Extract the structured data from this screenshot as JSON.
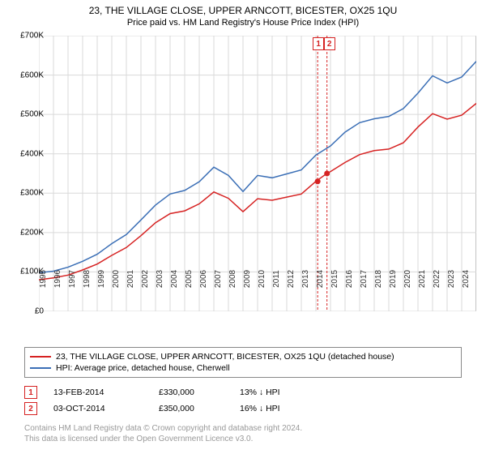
{
  "title": "23, THE VILLAGE CLOSE, UPPER ARNCOTT, BICESTER, OX25 1QU",
  "subtitle": "Price paid vs. HM Land Registry's House Price Index (HPI)",
  "chart": {
    "type": "line",
    "background_color": "#ffffff",
    "grid_color": "#d9d9d9",
    "border_color": "#888888",
    "xlim": [
      1995,
      2025
    ],
    "ylim": [
      0,
      700000
    ],
    "ytick_step": 100000,
    "ytick_format_prefix": "£",
    "ytick_labels": [
      "£0",
      "£100K",
      "£200K",
      "£300K",
      "£400K",
      "£500K",
      "£600K",
      "£700K"
    ],
    "xticks": [
      1995,
      1996,
      1997,
      1998,
      1999,
      2000,
      2001,
      2002,
      2003,
      2004,
      2005,
      2006,
      2007,
      2008,
      2009,
      2010,
      2011,
      2012,
      2013,
      2014,
      2015,
      2016,
      2017,
      2018,
      2019,
      2020,
      2021,
      2022,
      2023,
      2024
    ],
    "series": [
      {
        "name": "23, THE VILLAGE CLOSE, UPPER ARNCOTT, BICESTER, OX25 1QU (detached house)",
        "color": "#d62222",
        "line_width": 1.5,
        "data": [
          [
            1995,
            80000
          ],
          [
            1996,
            85000
          ],
          [
            1997,
            92000
          ],
          [
            1998,
            105000
          ],
          [
            1999,
            120000
          ],
          [
            2000,
            142000
          ],
          [
            2001,
            162000
          ],
          [
            2002,
            192000
          ],
          [
            2003,
            225000
          ],
          [
            2004,
            248000
          ],
          [
            2005,
            255000
          ],
          [
            2006,
            273000
          ],
          [
            2007,
            303000
          ],
          [
            2008,
            287000
          ],
          [
            2009,
            253000
          ],
          [
            2010,
            286000
          ],
          [
            2011,
            282000
          ],
          [
            2012,
            290000
          ],
          [
            2013,
            298000
          ],
          [
            2014,
            330000
          ],
          [
            2014.75,
            350000
          ],
          [
            2015,
            355000
          ],
          [
            2016,
            378000
          ],
          [
            2017,
            398000
          ],
          [
            2018,
            408000
          ],
          [
            2019,
            412000
          ],
          [
            2020,
            428000
          ],
          [
            2021,
            468000
          ],
          [
            2022,
            502000
          ],
          [
            2023,
            488000
          ],
          [
            2024,
            498000
          ],
          [
            2025,
            528000
          ]
        ]
      },
      {
        "name": "HPI: Average price, detached house, Cherwell",
        "color": "#3b6fb6",
        "line_width": 1.5,
        "data": [
          [
            1995,
            98000
          ],
          [
            1996,
            102000
          ],
          [
            1997,
            112000
          ],
          [
            1998,
            127000
          ],
          [
            1999,
            145000
          ],
          [
            2000,
            172000
          ],
          [
            2001,
            195000
          ],
          [
            2002,
            232000
          ],
          [
            2003,
            270000
          ],
          [
            2004,
            298000
          ],
          [
            2005,
            307000
          ],
          [
            2006,
            329000
          ],
          [
            2007,
            366000
          ],
          [
            2008,
            345000
          ],
          [
            2009,
            304000
          ],
          [
            2010,
            345000
          ],
          [
            2011,
            339000
          ],
          [
            2012,
            349000
          ],
          [
            2013,
            359000
          ],
          [
            2014,
            397000
          ],
          [
            2015,
            420000
          ],
          [
            2016,
            455000
          ],
          [
            2017,
            479000
          ],
          [
            2018,
            489000
          ],
          [
            2019,
            495000
          ],
          [
            2020,
            515000
          ],
          [
            2021,
            554000
          ],
          [
            2022,
            598000
          ],
          [
            2023,
            580000
          ],
          [
            2024,
            595000
          ],
          [
            2025,
            635000
          ]
        ]
      }
    ],
    "markers": [
      {
        "label": "1",
        "x": 2014.12,
        "y": 330000,
        "color": "#d62222"
      },
      {
        "label": "2",
        "x": 2014.76,
        "y": 350000,
        "color": "#d62222"
      }
    ],
    "marker_line_color": "#d62222",
    "marker_line_dash": "3,2"
  },
  "legend": {
    "border_color": "#888888",
    "items": [
      {
        "color": "#d62222",
        "label": "23, THE VILLAGE CLOSE, UPPER ARNCOTT, BICESTER, OX25 1QU (detached house)"
      },
      {
        "color": "#3b6fb6",
        "label": "HPI: Average price, detached house, Cherwell"
      }
    ]
  },
  "events": [
    {
      "badge": "1",
      "badge_color": "#d62222",
      "date": "13-FEB-2014",
      "price": "£330,000",
      "delta": "13% ↓ HPI"
    },
    {
      "badge": "2",
      "badge_color": "#d62222",
      "date": "03-OCT-2014",
      "price": "£350,000",
      "delta": "16% ↓ HPI"
    }
  ],
  "footer": {
    "line1": "Contains HM Land Registry data © Crown copyright and database right 2024.",
    "line2": "This data is licensed under the Open Government Licence v3.0."
  }
}
